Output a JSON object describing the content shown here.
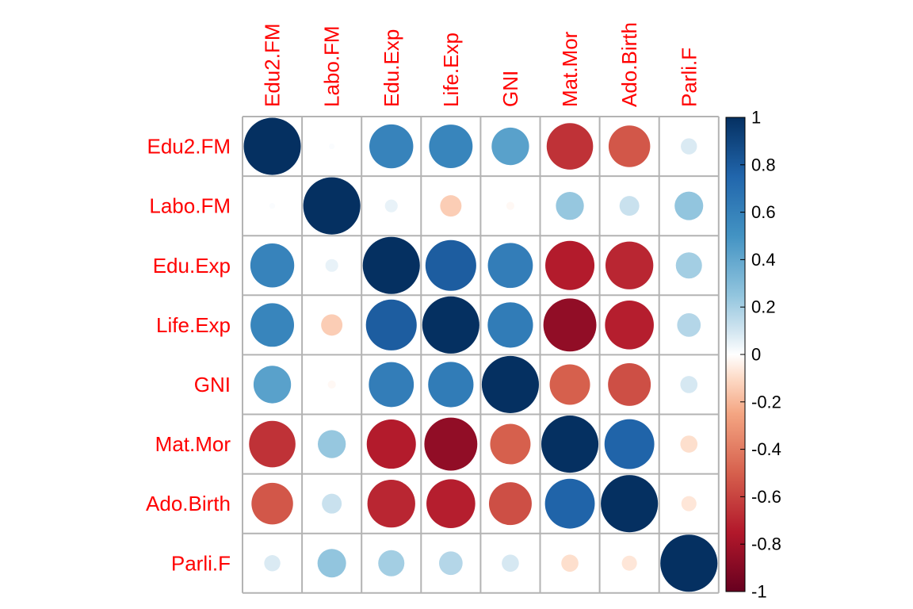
{
  "chart_data": {
    "type": "heatmap",
    "title": "",
    "variables": [
      "Edu2.FM",
      "Labo.FM",
      "Edu.Exp",
      "Life.Exp",
      "GNI",
      "Mat.Mor",
      "Ado.Birth",
      "Parli.F"
    ],
    "matrix": [
      [
        1.0,
        0.01,
        0.59,
        0.58,
        0.43,
        -0.66,
        -0.53,
        0.08
      ],
      [
        0.01,
        1.0,
        0.05,
        -0.14,
        -0.02,
        0.24,
        0.12,
        0.25
      ],
      [
        0.59,
        0.05,
        1.0,
        0.79,
        0.62,
        -0.74,
        -0.7,
        0.21
      ],
      [
        0.58,
        -0.14,
        0.79,
        1.0,
        0.63,
        -0.86,
        -0.73,
        0.17
      ],
      [
        0.43,
        -0.02,
        0.62,
        0.63,
        1.0,
        -0.5,
        -0.56,
        0.09
      ],
      [
        -0.66,
        0.24,
        -0.74,
        -0.86,
        -0.5,
        1.0,
        0.76,
        -0.09
      ],
      [
        -0.53,
        0.12,
        -0.7,
        -0.73,
        -0.56,
        0.76,
        1.0,
        -0.07
      ],
      [
        0.08,
        0.25,
        0.21,
        0.17,
        0.09,
        -0.09,
        -0.07,
        1.0
      ]
    ],
    "color_scale": {
      "range": [
        -1,
        1
      ],
      "ticks": [
        "1",
        "0.8",
        "0.6",
        "0.4",
        "0.2",
        "0",
        "-0.2",
        "-0.4",
        "-0.6",
        "-0.8",
        "-1"
      ],
      "stops": [
        {
          "value": -1.0,
          "color": "#67001f"
        },
        {
          "value": -0.75,
          "color": "#b2182b"
        },
        {
          "value": -0.5,
          "color": "#d6604d"
        },
        {
          "value": -0.25,
          "color": "#f4a582"
        },
        {
          "value": -0.1,
          "color": "#fddbc7"
        },
        {
          "value": 0.0,
          "color": "#ffffff"
        },
        {
          "value": 0.1,
          "color": "#d1e5f0"
        },
        {
          "value": 0.25,
          "color": "#92c5de"
        },
        {
          "value": 0.5,
          "color": "#4393c3"
        },
        {
          "value": 0.75,
          "color": "#2166ac"
        },
        {
          "value": 1.0,
          "color": "#053061"
        }
      ]
    },
    "label_color": "#ff0000",
    "grid_color": "#b3b3b3",
    "legend_position": "right"
  }
}
